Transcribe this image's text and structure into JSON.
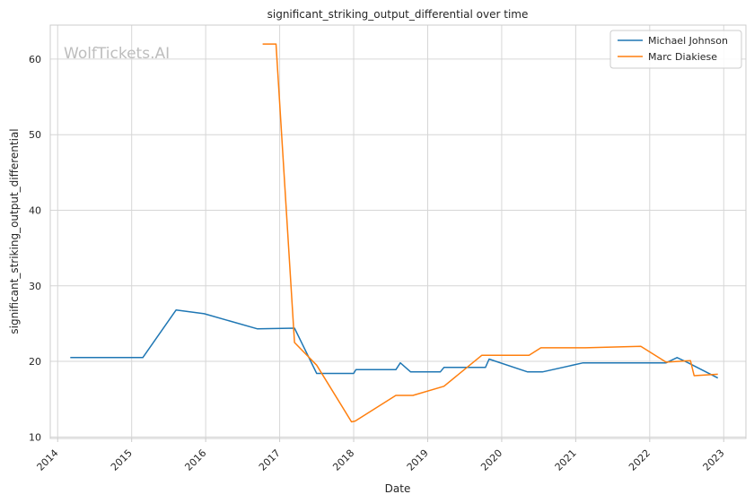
{
  "chart_data": {
    "type": "line",
    "title": "significant_striking_output_differential over time",
    "xlabel": "Date",
    "ylabel": "significant_striking_output_differential",
    "watermark": "WolfTickets.AI",
    "xlim": [
      2013.9,
      2023.3
    ],
    "ylim": [
      9.8,
      64.5
    ],
    "x_ticks": [
      2014,
      2015,
      2016,
      2017,
      2018,
      2019,
      2020,
      2021,
      2022,
      2023
    ],
    "x_tick_labels": [
      "2014",
      "2015",
      "2016",
      "2017",
      "2018",
      "2019",
      "2020",
      "2021",
      "2022",
      "2023"
    ],
    "y_ticks": [
      10,
      20,
      30,
      40,
      50,
      60
    ],
    "y_tick_labels": [
      "10",
      "20",
      "30",
      "40",
      "50",
      "60"
    ],
    "grid": true,
    "legend_position": "top-right",
    "series": [
      {
        "name": "Michael Johnson",
        "color": "#1f77b4",
        "points": [
          [
            2014.17,
            20.5
          ],
          [
            2015.15,
            20.5
          ],
          [
            2015.6,
            26.8
          ],
          [
            2015.98,
            26.3
          ],
          [
            2016.7,
            24.3
          ],
          [
            2017.2,
            24.4
          ],
          [
            2017.5,
            18.4
          ],
          [
            2018.0,
            18.4
          ],
          [
            2018.03,
            18.9
          ],
          [
            2018.57,
            18.9
          ],
          [
            2018.63,
            19.8
          ],
          [
            2018.77,
            18.6
          ],
          [
            2019.17,
            18.6
          ],
          [
            2019.22,
            19.2
          ],
          [
            2019.78,
            19.2
          ],
          [
            2019.83,
            20.3
          ],
          [
            2020.35,
            18.6
          ],
          [
            2020.55,
            18.6
          ],
          [
            2021.1,
            19.8
          ],
          [
            2022.22,
            19.8
          ],
          [
            2022.37,
            20.5
          ],
          [
            2022.52,
            19.8
          ],
          [
            2022.92,
            17.8
          ]
        ]
      },
      {
        "name": "Marc Diakiese",
        "color": "#ff7f0e",
        "points": [
          [
            2016.77,
            62.0
          ],
          [
            2016.95,
            62.0
          ],
          [
            2017.2,
            22.5
          ],
          [
            2017.5,
            19.5
          ],
          [
            2017.97,
            12.0
          ],
          [
            2018.02,
            12.1
          ],
          [
            2018.57,
            15.5
          ],
          [
            2018.8,
            15.5
          ],
          [
            2019.22,
            16.7
          ],
          [
            2019.73,
            20.8
          ],
          [
            2020.37,
            20.8
          ],
          [
            2020.53,
            21.8
          ],
          [
            2021.13,
            21.8
          ],
          [
            2021.88,
            22.0
          ],
          [
            2022.22,
            19.9
          ],
          [
            2022.55,
            20.1
          ],
          [
            2022.6,
            18.1
          ],
          [
            2022.92,
            18.3
          ]
        ]
      }
    ]
  }
}
